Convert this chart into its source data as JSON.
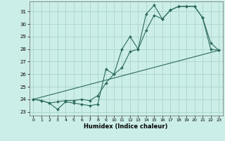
{
  "title": "",
  "xlabel": "Humidex (Indice chaleur)",
  "bg_color": "#cceee8",
  "line_color": "#2d6b5e",
  "grid_color": "#aad4cc",
  "xlim": [
    -0.5,
    23.5
  ],
  "ylim": [
    22.7,
    31.8
  ],
  "yticks": [
    23,
    24,
    25,
    26,
    27,
    28,
    29,
    30,
    31
  ],
  "xticks": [
    0,
    1,
    2,
    3,
    4,
    5,
    6,
    7,
    8,
    9,
    10,
    11,
    12,
    13,
    14,
    15,
    16,
    17,
    18,
    19,
    20,
    21,
    22,
    23
  ],
  "line1_x": [
    0,
    1,
    2,
    3,
    4,
    5,
    6,
    7,
    8,
    9,
    10,
    11,
    12,
    13,
    14,
    15,
    16,
    17,
    18,
    19,
    20,
    21,
    22,
    23
  ],
  "line1_y": [
    24.0,
    23.9,
    23.7,
    23.2,
    23.8,
    23.7,
    23.6,
    23.5,
    23.6,
    26.4,
    26.0,
    28.0,
    29.0,
    28.0,
    30.8,
    31.5,
    30.4,
    31.1,
    31.4,
    31.4,
    31.4,
    30.5,
    28.0,
    27.9
  ],
  "line2_x": [
    0,
    1,
    2,
    3,
    4,
    5,
    6,
    7,
    8,
    9,
    10,
    11,
    12,
    13,
    14,
    15,
    16,
    17,
    18,
    19,
    20,
    21,
    22,
    23
  ],
  "line2_y": [
    24.0,
    23.9,
    23.7,
    23.8,
    23.9,
    23.9,
    24.0,
    23.9,
    24.3,
    25.3,
    26.0,
    26.5,
    27.8,
    28.0,
    29.5,
    30.7,
    30.4,
    31.1,
    31.4,
    31.4,
    31.4,
    30.5,
    28.5,
    27.9
  ],
  "line3_x": [
    0,
    23
  ],
  "line3_y": [
    24.0,
    27.9
  ]
}
